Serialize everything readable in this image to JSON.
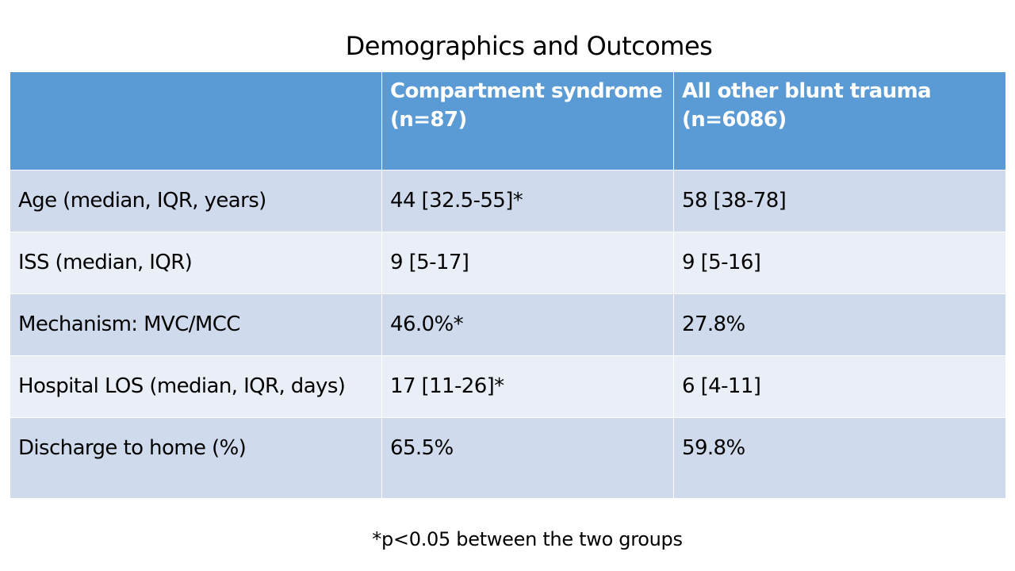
{
  "slide": {
    "title": "Demographics and Outcomes",
    "footnote": "*p<0.05 between the two groups"
  },
  "table": {
    "headers": [
      {
        "line1": "",
        "line2": ""
      },
      {
        "line1": "Compartment syndrome",
        "line2": "(n=87)"
      },
      {
        "line1": "All other blunt trauma",
        "line2": "(n=6086)"
      }
    ],
    "rows": [
      {
        "label": "Age (median, IQR, years)",
        "compartment": "44 [32.5-55]*",
        "other": "58 [38-78]"
      },
      {
        "label": "ISS (median, IQR)",
        "compartment": "9 [5-17]",
        "other": "9 [5-16]"
      },
      {
        "label": "Mechanism: MVC/MCC",
        "compartment": "46.0%*",
        "other": "27.8%"
      },
      {
        "label": "Hospital LOS (median, IQR, days)",
        "compartment": "17 [11-26]*",
        "other": "6 [4-11]"
      },
      {
        "label": "Discharge to home (%)",
        "compartment": "65.5%",
        "other": "59.8%"
      }
    ]
  },
  "colors": {
    "header_bg": "#5b9bd5",
    "row_odd_bg": "#cfdaec",
    "row_even_bg": "#e9eef7"
  }
}
